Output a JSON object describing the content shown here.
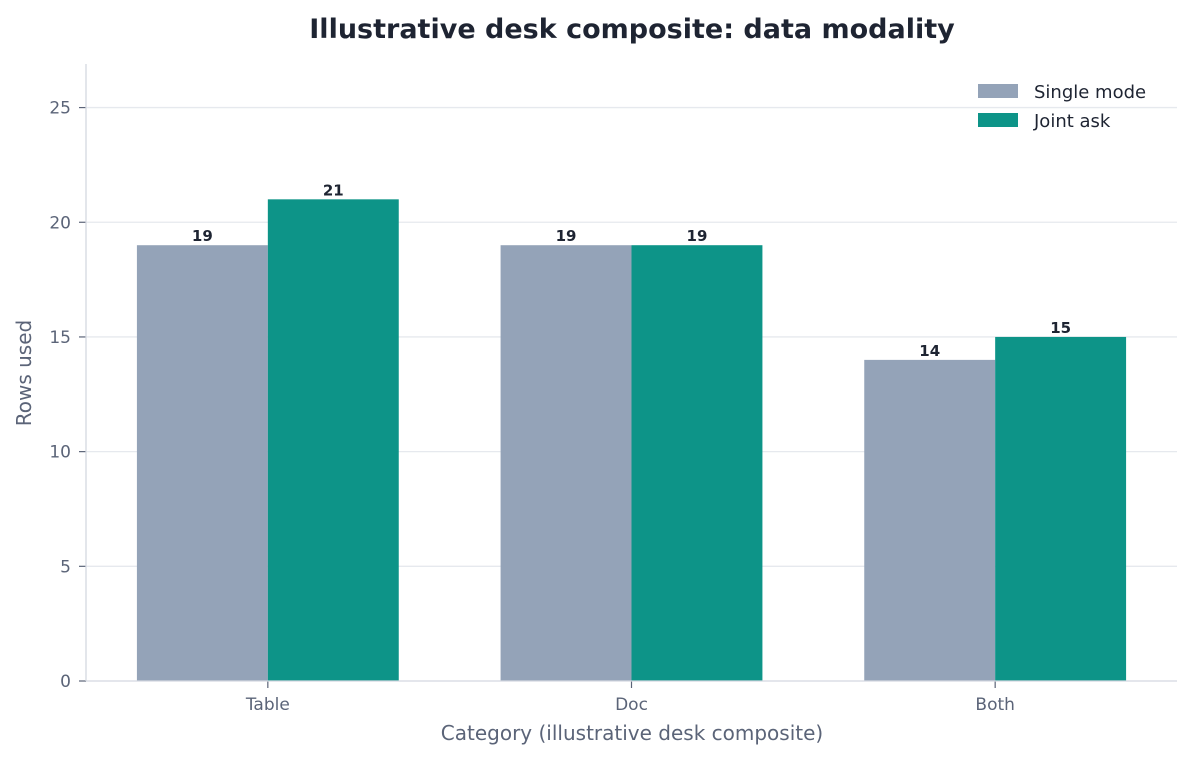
{
  "chart_data": {
    "type": "bar",
    "title": "Illustrative desk composite: data modality",
    "xlabel": "Category (illustrative desk composite)",
    "ylabel": "Rows used",
    "categories": [
      "Table",
      "Doc",
      "Both"
    ],
    "series": [
      {
        "name": "Single mode",
        "values": [
          19,
          19,
          14
        ],
        "color": "#94a3b8"
      },
      {
        "name": "Joint ask",
        "values": [
          21,
          19,
          15
        ],
        "color": "#0d9488"
      }
    ],
    "ylim": [
      0,
      26.9
    ],
    "yticks": [
      0,
      5,
      10,
      15,
      20,
      25
    ],
    "grid": true,
    "legend_position": "top-right",
    "axis_color": "#d4d8e0",
    "grid_color": "#e6e9ee"
  }
}
